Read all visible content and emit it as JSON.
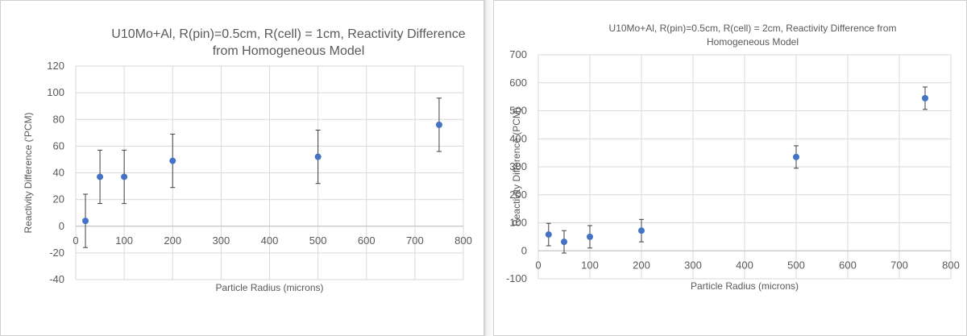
{
  "chart_data": [
    {
      "type": "scatter",
      "title": [
        "U10Mo+Al, R(pin)=0.5cm, R(cell) = 1cm, Reactivity Difference",
        "from Homogeneous Model"
      ],
      "xlabel": "Particle Radius (microns)",
      "ylabel": "Reactivity Difference ('PCM)",
      "xlim": [
        0,
        800
      ],
      "ylim": [
        -40,
        120
      ],
      "xticks": [
        0,
        100,
        200,
        300,
        400,
        500,
        600,
        700,
        800
      ],
      "yticks": [
        -40,
        -20,
        0,
        20,
        40,
        60,
        80,
        100,
        120
      ],
      "grid": true,
      "legend": "none",
      "marker_color": "#4472c4",
      "points": [
        {
          "x": 20,
          "y": 4,
          "err": 20
        },
        {
          "x": 50,
          "y": 37,
          "err": 20
        },
        {
          "x": 100,
          "y": 37,
          "err": 20
        },
        {
          "x": 200,
          "y": 49,
          "err": 20
        },
        {
          "x": 500,
          "y": 52,
          "err": 20
        },
        {
          "x": 750,
          "y": 76,
          "err": 20
        }
      ]
    },
    {
      "type": "scatter",
      "title": [
        "U10Mo+Al, R(pin)=0.5cm, R(cell) = 2cm, Reactivity Difference from",
        "Homogeneous Model"
      ],
      "xlabel": "Particle Radius (microns)",
      "ylabel": "Reactivity Difference (PCM)",
      "xlim": [
        0,
        800
      ],
      "ylim": [
        -100,
        700
      ],
      "xticks": [
        0,
        100,
        200,
        300,
        400,
        500,
        600,
        700,
        800
      ],
      "yticks": [
        -100,
        0,
        100,
        200,
        300,
        400,
        500,
        600,
        700
      ],
      "grid": true,
      "legend": "none",
      "marker_color": "#4472c4",
      "points": [
        {
          "x": 20,
          "y": 58,
          "err": 40
        },
        {
          "x": 50,
          "y": 32,
          "err": 40
        },
        {
          "x": 100,
          "y": 50,
          "err": 40
        },
        {
          "x": 200,
          "y": 72,
          "err": 40
        },
        {
          "x": 500,
          "y": 335,
          "err": 40
        },
        {
          "x": 750,
          "y": 545,
          "err": 40
        }
      ]
    }
  ]
}
